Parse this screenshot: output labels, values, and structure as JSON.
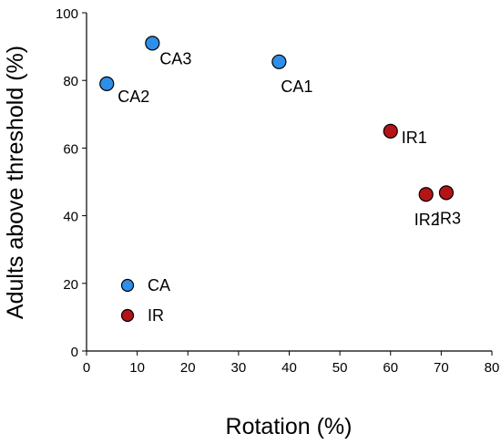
{
  "chart_data": {
    "type": "scatter",
    "xlabel": "Rotation (%)",
    "ylabel": "Adults above threshold (%)",
    "xlim": [
      0,
      80
    ],
    "ylim": [
      0,
      100
    ],
    "xticks": [
      0,
      10,
      20,
      30,
      40,
      50,
      60,
      70,
      80
    ],
    "yticks": [
      0,
      20,
      40,
      60,
      80,
      100
    ],
    "grid": false,
    "legend_position": "lower-left",
    "series": [
      {
        "name": "CA",
        "color": "#2e8fe8",
        "points": [
          {
            "label": "CA1",
            "x": 38,
            "y": 85.5
          },
          {
            "label": "CA2",
            "x": 4,
            "y": 79
          },
          {
            "label": "CA3",
            "x": 13,
            "y": 91
          }
        ]
      },
      {
        "name": "IR",
        "color": "#b41416",
        "points": [
          {
            "label": "IR1",
            "x": 60,
            "y": 65
          },
          {
            "label": "IR2",
            "x": 67,
            "y": 46.3
          },
          {
            "label": "IR3",
            "x": 71,
            "y": 46.8
          }
        ]
      }
    ]
  }
}
